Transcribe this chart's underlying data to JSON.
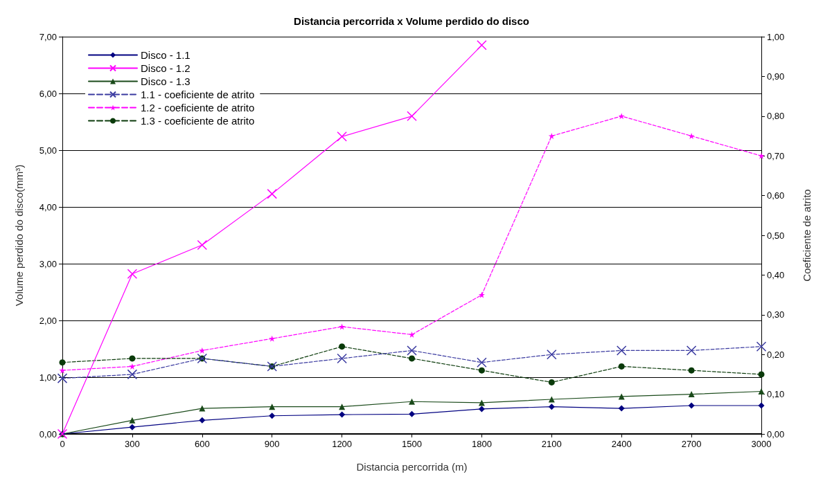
{
  "chart_data": {
    "type": "line",
    "title": "Distancia percorrida x Volume perdido do disco",
    "xlabel": "Distancia percorrida (m)",
    "ylabel": "Volume perdido do disco(mm³)",
    "y2label": "Coeficiente de atrito",
    "categories": [
      "0",
      "300",
      "600",
      "900",
      "1200",
      "1500",
      "1800",
      "2100",
      "2400",
      "2700",
      "3000"
    ],
    "series": [
      {
        "name": "Disco - 1.1",
        "color": "#000080",
        "marker": "diamond",
        "line_style": "solid",
        "values": [
          0,
          0.12,
          0.24,
          0.32,
          0.34,
          0.35,
          0.44,
          0.48,
          0.45,
          0.5,
          0.5
        ]
      },
      {
        "name": "Disco - 1.2",
        "color": "#ff00ff",
        "marker": "cross",
        "line_style": "solid",
        "values": [
          0,
          2.82,
          3.33,
          4.23,
          5.24,
          5.6,
          6.85,
          null,
          null,
          null,
          null
        ]
      },
      {
        "name": "Disco - 1.3",
        "color": "#1a4a1a",
        "marker": "triangle",
        "line_style": "solid",
        "values": [
          0,
          0.24,
          0.45,
          0.48,
          0.48,
          0.57,
          0.55,
          0.61,
          0.66,
          0.7,
          0.75
        ]
      },
      {
        "name": "1.1 - coeficiente de atrito",
        "color": "#3a3aa0",
        "marker": "cross",
        "line_style": "dashed",
        "axis": "y2",
        "values": [
          0.14,
          0.15,
          0.19,
          0.17,
          0.19,
          0.21,
          0.18,
          0.2,
          0.21,
          0.21,
          0.22
        ]
      },
      {
        "name": "1.2 - coeficiente de atrito",
        "color": "#ff00ff",
        "marker": "star",
        "line_style": "dashed",
        "axis": "y2",
        "values": [
          0.16,
          0.17,
          0.21,
          0.24,
          0.27,
          0.25,
          0.35,
          0.75,
          0.8,
          0.75,
          0.7
        ]
      },
      {
        "name": "1.3 - coeficiente de atrito",
        "color": "#0a3a0a",
        "marker": "circle",
        "line_style": "dashed",
        "axis": "y2",
        "values": [
          0.18,
          0.19,
          0.19,
          0.17,
          0.22,
          0.19,
          0.16,
          0.13,
          0.17,
          0.16,
          0.15
        ]
      }
    ],
    "ylim": [
      0,
      7
    ],
    "yticks": [
      {
        "value": 0,
        "label": "0,00"
      },
      {
        "value": 1,
        "label": "1,00"
      },
      {
        "value": 2,
        "label": "2,00"
      },
      {
        "value": 3,
        "label": "3,00"
      },
      {
        "value": 4,
        "label": "4,00"
      },
      {
        "value": 5,
        "label": "5,00"
      },
      {
        "value": 6,
        "label": "6,00"
      },
      {
        "value": 7,
        "label": "7,00"
      }
    ],
    "y2lim": [
      0,
      1
    ],
    "y2ticks": [
      {
        "value": 0,
        "label": "0,00"
      },
      {
        "value": 0.1,
        "label": "0,10"
      },
      {
        "value": 0.2,
        "label": "0,20"
      },
      {
        "value": 0.3,
        "label": "0,30"
      },
      {
        "value": 0.4,
        "label": "0,40"
      },
      {
        "value": 0.5,
        "label": "0,50"
      },
      {
        "value": 0.6,
        "label": "0,60"
      },
      {
        "value": 0.7,
        "label": "0,70"
      },
      {
        "value": 0.8,
        "label": "0,80"
      },
      {
        "value": 0.9,
        "label": "0,90"
      },
      {
        "value": 1,
        "label": "1,00"
      }
    ],
    "grid": "y",
    "legend": "top left"
  }
}
